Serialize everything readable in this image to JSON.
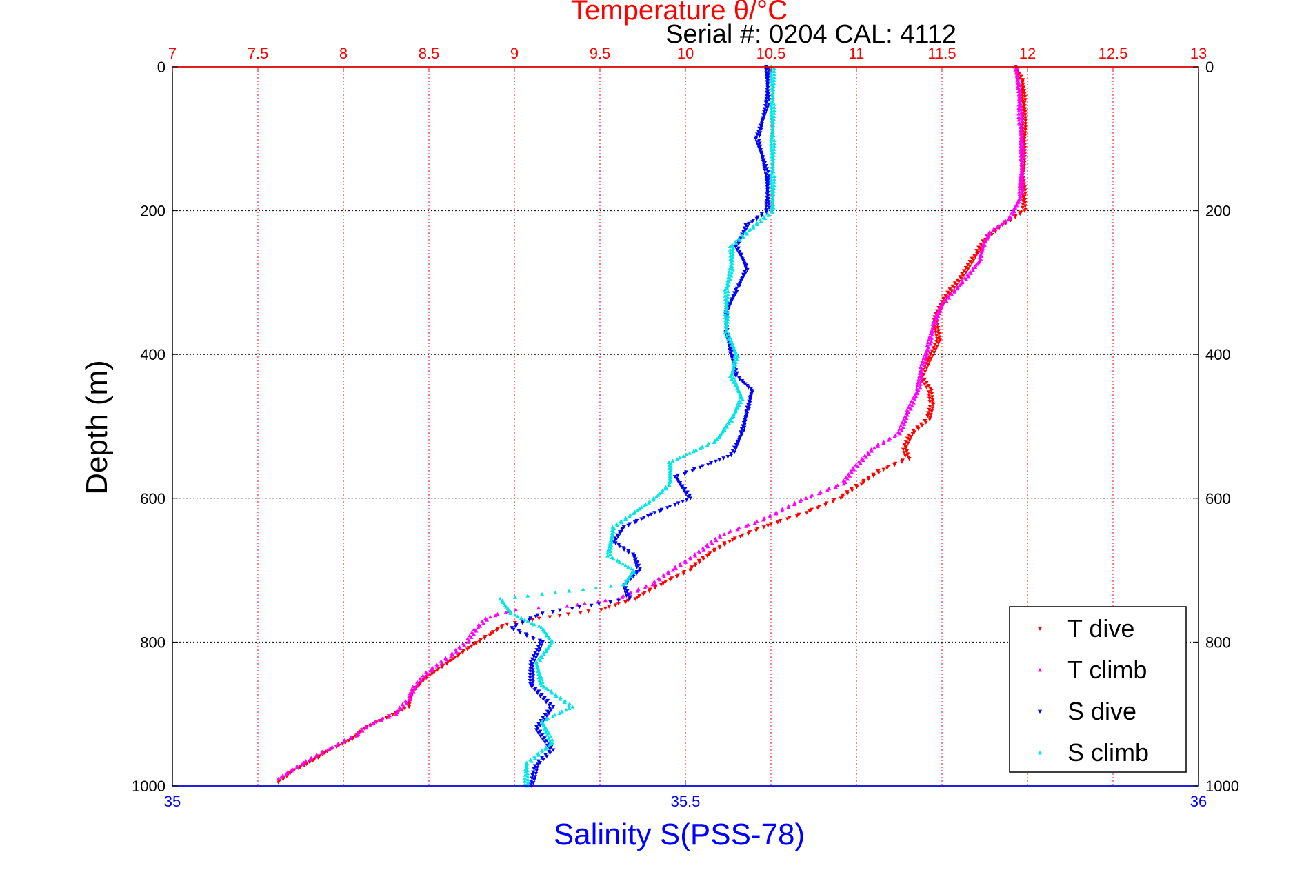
{
  "chart_data": {
    "type": "scatter",
    "header": "Serial #: 0204  CAL: 4112",
    "top_axis": {
      "label": "Temperature θ/°C",
      "range": [
        7,
        13
      ],
      "ticks": [
        "7",
        "7.5",
        "8",
        "8.5",
        "9",
        "9.5",
        "10",
        "10.5",
        "11",
        "11.5",
        "12",
        "12.5",
        "13"
      ],
      "color": "#ff0000"
    },
    "bottom_axis": {
      "label": "Salinity S(PSS-78)",
      "range": [
        35,
        36
      ],
      "ticks": [
        "35",
        "35.5",
        "36"
      ],
      "color": "#0000ff"
    },
    "y_axis": {
      "label": "Depth (m)",
      "range": [
        0,
        1000
      ],
      "reversed": true,
      "ticks": [
        "0",
        "200",
        "400",
        "600",
        "800",
        "1000"
      ]
    },
    "grid": true,
    "legend_position": "bottom-right",
    "series": [
      {
        "name": "T dive",
        "axis": "temperature",
        "color": "#ff0000",
        "marker": "triangle-down",
        "points": [
          [
            11.93,
            0
          ],
          [
            11.97,
            20
          ],
          [
            11.98,
            50
          ],
          [
            11.98,
            100
          ],
          [
            11.97,
            150
          ],
          [
            11.98,
            180
          ],
          [
            11.98,
            200
          ],
          [
            11.85,
            220
          ],
          [
            11.75,
            240
          ],
          [
            11.7,
            260
          ],
          [
            11.62,
            290
          ],
          [
            11.52,
            320
          ],
          [
            11.46,
            350
          ],
          [
            11.48,
            380
          ],
          [
            11.42,
            410
          ],
          [
            11.38,
            430
          ],
          [
            11.43,
            450
          ],
          [
            11.44,
            470
          ],
          [
            11.42,
            490
          ],
          [
            11.32,
            510
          ],
          [
            11.28,
            530
          ],
          [
            11.3,
            545
          ],
          [
            11.15,
            560
          ],
          [
            11.02,
            580
          ],
          [
            10.9,
            600
          ],
          [
            10.7,
            620
          ],
          [
            10.45,
            640
          ],
          [
            10.25,
            660
          ],
          [
            10.12,
            680
          ],
          [
            10.02,
            700
          ],
          [
            9.85,
            720
          ],
          [
            9.7,
            740
          ],
          [
            9.5,
            755
          ],
          [
            9.2,
            765
          ],
          [
            8.95,
            775
          ],
          [
            8.85,
            790
          ],
          [
            8.72,
            810
          ],
          [
            8.6,
            830
          ],
          [
            8.48,
            850
          ],
          [
            8.4,
            870
          ],
          [
            8.38,
            890
          ],
          [
            8.25,
            905
          ],
          [
            8.12,
            920
          ],
          [
            8.05,
            935
          ],
          [
            7.92,
            950
          ],
          [
            7.82,
            965
          ],
          [
            7.7,
            980
          ],
          [
            7.62,
            995
          ]
        ]
      },
      {
        "name": "T climb",
        "axis": "temperature",
        "color": "#ff00ff",
        "marker": "triangle-up",
        "points": [
          [
            11.93,
            0
          ],
          [
            11.95,
            30
          ],
          [
            11.96,
            80
          ],
          [
            11.97,
            130
          ],
          [
            11.96,
            180
          ],
          [
            11.9,
            210
          ],
          [
            11.78,
            230
          ],
          [
            11.74,
            250
          ],
          [
            11.72,
            270
          ],
          [
            11.62,
            300
          ],
          [
            11.5,
            330
          ],
          [
            11.45,
            360
          ],
          [
            11.42,
            390
          ],
          [
            11.38,
            420
          ],
          [
            11.36,
            450
          ],
          [
            11.3,
            480
          ],
          [
            11.25,
            510
          ],
          [
            11.1,
            530
          ],
          [
            10.98,
            560
          ],
          [
            10.92,
            580
          ],
          [
            10.7,
            600
          ],
          [
            10.45,
            630
          ],
          [
            10.22,
            650
          ],
          [
            10.05,
            680
          ],
          [
            9.92,
            700
          ],
          [
            9.8,
            720
          ],
          [
            9.6,
            740
          ],
          [
            9.3,
            750
          ],
          [
            9.0,
            755
          ],
          [
            8.85,
            765
          ],
          [
            8.78,
            780
          ],
          [
            8.72,
            800
          ],
          [
            8.62,
            820
          ],
          [
            8.5,
            840
          ],
          [
            8.42,
            860
          ],
          [
            8.38,
            880
          ],
          [
            8.3,
            900
          ],
          [
            8.15,
            915
          ],
          [
            8.07,
            930
          ],
          [
            7.9,
            950
          ],
          [
            7.75,
            970
          ],
          [
            7.62,
            990
          ]
        ]
      },
      {
        "name": "S dive",
        "axis": "salinity",
        "color": "#0000ff",
        "marker": "triangle-down",
        "points": [
          [
            35.58,
            0
          ],
          [
            35.58,
            50
          ],
          [
            35.57,
            100
          ],
          [
            35.58,
            150
          ],
          [
            35.58,
            200
          ],
          [
            35.56,
            220
          ],
          [
            35.55,
            250
          ],
          [
            35.56,
            280
          ],
          [
            35.55,
            310
          ],
          [
            35.54,
            340
          ],
          [
            35.54,
            370
          ],
          [
            35.545,
            400
          ],
          [
            35.55,
            430
          ],
          [
            35.565,
            450
          ],
          [
            35.56,
            480
          ],
          [
            35.555,
            510
          ],
          [
            35.545,
            540
          ],
          [
            35.49,
            570
          ],
          [
            35.505,
            600
          ],
          [
            35.47,
            620
          ],
          [
            35.44,
            640
          ],
          [
            35.43,
            660
          ],
          [
            35.45,
            680
          ],
          [
            35.455,
            700
          ],
          [
            35.44,
            720
          ],
          [
            35.445,
            740
          ],
          [
            35.36,
            760
          ],
          [
            35.33,
            780
          ],
          [
            35.36,
            800
          ],
          [
            35.35,
            830
          ],
          [
            35.35,
            860
          ],
          [
            35.37,
            890
          ],
          [
            35.355,
            920
          ],
          [
            35.37,
            950
          ],
          [
            35.355,
            970
          ],
          [
            35.35,
            1000
          ]
        ]
      },
      {
        "name": "S climb",
        "axis": "salinity",
        "color": "#00e5e5",
        "marker": "triangle-up",
        "points": [
          [
            35.585,
            0
          ],
          [
            35.585,
            50
          ],
          [
            35.585,
            100
          ],
          [
            35.585,
            150
          ],
          [
            35.585,
            200
          ],
          [
            35.56,
            230
          ],
          [
            35.545,
            250
          ],
          [
            35.545,
            280
          ],
          [
            35.54,
            310
          ],
          [
            35.54,
            340
          ],
          [
            35.54,
            370
          ],
          [
            35.55,
            400
          ],
          [
            35.545,
            430
          ],
          [
            35.555,
            460
          ],
          [
            35.545,
            490
          ],
          [
            35.53,
            520
          ],
          [
            35.485,
            550
          ],
          [
            35.485,
            580
          ],
          [
            35.47,
            600
          ],
          [
            35.43,
            640
          ],
          [
            35.425,
            680
          ],
          [
            35.45,
            700
          ],
          [
            35.44,
            720
          ],
          [
            35.32,
            740
          ],
          [
            35.33,
            760
          ],
          [
            35.36,
            780
          ],
          [
            35.37,
            800
          ],
          [
            35.355,
            830
          ],
          [
            35.36,
            860
          ],
          [
            35.39,
            890
          ],
          [
            35.36,
            910
          ],
          [
            35.37,
            940
          ],
          [
            35.345,
            970
          ],
          [
            35.345,
            1000
          ]
        ]
      }
    ]
  }
}
